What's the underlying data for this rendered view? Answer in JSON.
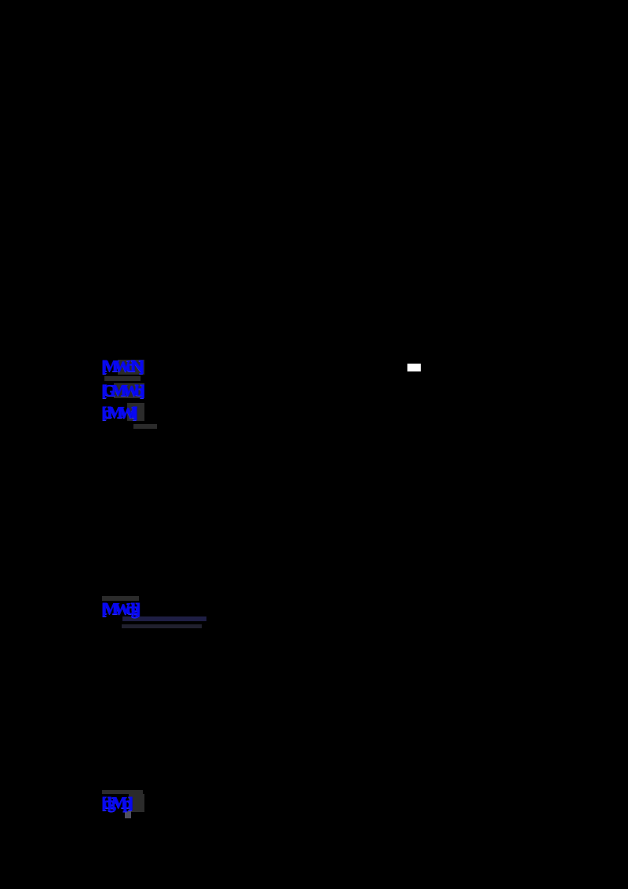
{
  "page": {
    "background_color": "#000000",
    "link_color": "#0808f2",
    "rule_color": "#1e1e44",
    "remnant_color": "#2b2b2b",
    "marker_color": "#ffffff"
  },
  "citations": {
    "ref1": {
      "label": "[MWdN]"
    },
    "ref2": {
      "label": "[GMWb]"
    },
    "ref3": {
      "label": "[dMWf]"
    },
    "ref4": {
      "label": "[MWdg]"
    },
    "ref5": {
      "label": "[dgMp]"
    }
  }
}
